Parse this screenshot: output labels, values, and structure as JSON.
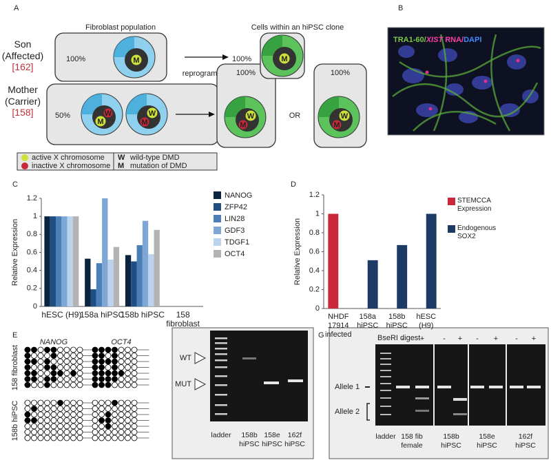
{
  "panel_labels": [
    "A",
    "B",
    "C",
    "D",
    "E",
    "F",
    "G"
  ],
  "panel_a": {
    "left_heading": "Fibroblast population",
    "right_heading": "Cells within an hiPSC clone",
    "son": {
      "label": "Son (Affected)",
      "ref": "[162]",
      "fibroblast_percent": "100%",
      "fibroblast_cell": {
        "active": "M"
      },
      "clone_percent": "100%",
      "clone_cell": {
        "active": "M"
      }
    },
    "arrow_label": "reprogramming",
    "mother": {
      "label": "Mother (Carrier)",
      "ref": "[158]",
      "fibroblast_percent": "50%",
      "fibroblast_cells": [
        {
          "active": "M",
          "inactive": "W"
        },
        {
          "active": "W",
          "inactive": "M"
        }
      ],
      "clone_percents": [
        "100%",
        "100%"
      ],
      "clone_cells": [
        {
          "active": "W",
          "inactive": "M"
        },
        {
          "active": "W",
          "inactive": "M"
        }
      ],
      "separator": "OR"
    },
    "legend": {
      "active": "active X chromosome",
      "inactive": "inactive X chromosome",
      "w_key": "W",
      "w_label": "wild-type DMD",
      "m_key": "M",
      "m_label": "mutation of DMD"
    }
  },
  "panel_b": {
    "stain_label": [
      "TRA1-60/",
      "XIST",
      " RNA/",
      "DAPI"
    ]
  },
  "chart_data": [
    {
      "type": "bar",
      "y_label": "Relative Expression",
      "categories": [
        "hESC (H9)",
        "158a hiPSC",
        "158b hiPSC",
        "158 fibroblast"
      ],
      "series": [
        {
          "name": "NANOG",
          "color": "#0d2440",
          "values": [
            1,
            0.53,
            0.57,
            0
          ]
        },
        {
          "name": "ZFP42",
          "color": "#1f4f82",
          "values": [
            1,
            0.19,
            0.5,
            0
          ]
        },
        {
          "name": "LIN28",
          "color": "#4a7fb8",
          "values": [
            1,
            0.48,
            0.68,
            0
          ]
        },
        {
          "name": "GDF3",
          "color": "#7ea7d6",
          "values": [
            1,
            1.2,
            0.95,
            0
          ]
        },
        {
          "name": "TDGF1",
          "color": "#bcd3ee",
          "values": [
            1,
            0.52,
            0.58,
            0
          ]
        },
        {
          "name": "OCT4",
          "color": "#b3b3b3",
          "values": [
            1,
            0.66,
            0.85,
            0
          ]
        }
      ],
      "ylim": [
        0,
        1.2
      ],
      "yticks": [
        0,
        0.2,
        0.4,
        0.6,
        0.8,
        1,
        1.2
      ]
    },
    {
      "type": "bar",
      "y_label": "Relative Expression",
      "categories": [
        "NHDF 17914 infected",
        "158a hiPSC",
        "158b hiPSC",
        "hESC (H9)"
      ],
      "series": [
        {
          "name": "STEMCCA Expression",
          "color": "#c8283a",
          "values": [
            1,
            null,
            null,
            null
          ]
        },
        {
          "name": "Endogenous SOX2",
          "color": "#1c3a63",
          "values": [
            null,
            0.51,
            0.67,
            1
          ]
        }
      ],
      "ylim": [
        0,
        1.2
      ],
      "yticks": [
        0,
        0.2,
        0.4,
        0.6,
        0.8,
        1,
        1.2
      ]
    }
  ],
  "panel_e": {
    "genes": [
      "NANOG",
      "OCT4"
    ],
    "samples": [
      "158 fibroblast",
      "158b hiPSC"
    ],
    "patterns": [
      [
        [
          [
            1,
            1,
            0,
            1,
            1,
            0,
            0,
            0,
            0
          ],
          [
            1,
            0,
            0,
            0,
            1,
            0,
            0,
            0,
            0
          ],
          [
            1,
            1,
            0,
            1,
            0,
            0,
            0,
            0,
            0
          ],
          [
            1,
            0,
            0,
            1,
            1,
            0,
            0,
            0,
            0
          ],
          [
            1,
            1,
            0,
            0,
            1,
            1,
            0,
            1,
            0
          ],
          [
            1,
            1,
            0,
            1,
            1,
            0,
            0,
            0,
            0
          ],
          [
            1,
            0,
            0,
            1,
            0,
            0,
            0,
            0,
            0
          ]
        ],
        [
          [
            1,
            1,
            1,
            1,
            0,
            0,
            0
          ],
          [
            1,
            1,
            0,
            1,
            0,
            0,
            0
          ],
          [
            1,
            1,
            1,
            1,
            0,
            0,
            0
          ],
          [
            1,
            1,
            0,
            1,
            0,
            0,
            0
          ],
          [
            1,
            1,
            1,
            1,
            1,
            0,
            0
          ],
          [
            1,
            1,
            1,
            1,
            0,
            0,
            0
          ],
          [
            1,
            1,
            1,
            0,
            0,
            0,
            0
          ]
        ]
      ],
      [
        [
          [
            0,
            0,
            0,
            0,
            0,
            1,
            0,
            0,
            0
          ],
          [
            0,
            1,
            0,
            0,
            0,
            0,
            0,
            0,
            0
          ],
          [
            1,
            0,
            0,
            0,
            0,
            0,
            0,
            0,
            0
          ],
          [
            1,
            1,
            0,
            0,
            0,
            0,
            0,
            0,
            0
          ],
          [
            0,
            0,
            0,
            0,
            0,
            0,
            0,
            0,
            0
          ],
          [
            0,
            0,
            0,
            0,
            0,
            0,
            0,
            0,
            0
          ],
          [
            0,
            0,
            0,
            0,
            0,
            0,
            0,
            0,
            0
          ]
        ],
        [
          [
            0,
            0,
            0,
            1,
            0,
            0,
            0
          ],
          [
            0,
            0,
            0,
            0,
            0,
            0,
            0
          ],
          [
            0,
            0,
            1,
            0,
            0,
            0,
            0
          ],
          [
            0,
            1,
            1,
            0,
            0,
            0,
            0
          ],
          [
            0,
            0,
            1,
            0,
            0,
            0,
            0
          ],
          [
            0,
            0,
            0,
            0,
            0,
            0,
            0
          ],
          [
            0,
            0,
            0,
            0,
            0,
            0,
            0
          ]
        ]
      ]
    ]
  },
  "panel_f": {
    "markers": [
      "WT",
      "MUT"
    ],
    "lanes": [
      "ladder",
      "158b hiPSC",
      "158e hiPSC",
      "162f hiPSC"
    ]
  },
  "panel_g": {
    "title": "BseRI digest",
    "signs": [
      "-",
      "+",
      "-",
      "+",
      "-",
      "+",
      "-",
      "+"
    ],
    "alleles": [
      "Allele 1",
      "Allele 2"
    ],
    "lanes": [
      "ladder",
      "158 fib female",
      "158b hiPSC",
      "158e hiPSC",
      "162f hiPSC"
    ]
  }
}
